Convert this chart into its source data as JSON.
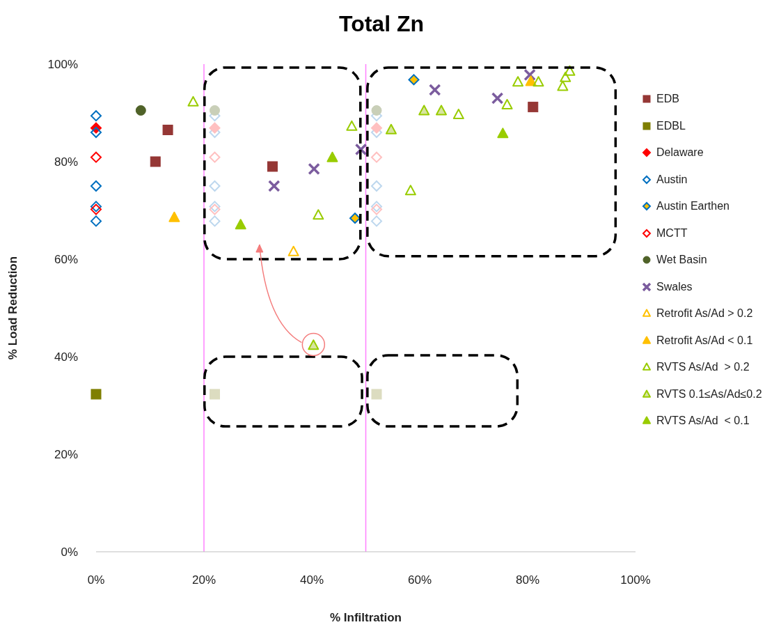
{
  "chart_data": {
    "type": "scatter",
    "title": "Total Zn",
    "xlabel": "% Infiltration",
    "ylabel": "% Load Reduction",
    "xlim": [
      0,
      100
    ],
    "ylim": [
      0,
      100
    ],
    "xticks": [
      {
        "value": 0,
        "label": "0%"
      },
      {
        "value": 20,
        "label": "20%"
      },
      {
        "value": 40,
        "label": "40%"
      },
      {
        "value": 60,
        "label": "60%"
      },
      {
        "value": 80,
        "label": "80%"
      },
      {
        "value": 100,
        "label": "100%"
      }
    ],
    "yticks": [
      {
        "value": 0,
        "label": "0%"
      },
      {
        "value": 20,
        "label": "20%"
      },
      {
        "value": 40,
        "label": "40%"
      },
      {
        "value": 60,
        "label": "60%"
      },
      {
        "value": 80,
        "label": "80%"
      },
      {
        "value": 100,
        "label": "100%"
      }
    ],
    "grid": false,
    "legend": "right",
    "ref_lines": [
      {
        "axis": "x",
        "value": 20,
        "color": "#ff80ff"
      },
      {
        "axis": "x",
        "value": 50,
        "color": "#ff80ff"
      }
    ],
    "series": [
      {
        "name": "EDB",
        "marker": "square",
        "color": "#953735",
        "x": [
          13.3,
          11.0,
          32.7,
          81.0
        ],
        "values": [
          86.5,
          80.0,
          79.0,
          91.2
        ]
      },
      {
        "name": "EDBL",
        "marker": "square",
        "color": "#7f7f00",
        "x": [
          0
        ],
        "values": [
          32.3
        ]
      },
      {
        "name": "Delaware",
        "marker": "diamond",
        "color": "#ff0000",
        "x": [
          0
        ],
        "values": [
          86.9
        ]
      },
      {
        "name": "Austin",
        "marker": "diamond",
        "color": "#0070c0",
        "x": [
          0,
          0,
          0,
          0,
          0
        ],
        "values": [
          89.4,
          86.0,
          75.0,
          70.8,
          67.8
        ]
      },
      {
        "name": "Austin Earthen",
        "marker": "diamond",
        "color": "#ffc000",
        "x": [
          58.9,
          48.0
        ],
        "values": [
          96.8,
          68.4
        ]
      },
      {
        "name": "MCTT",
        "marker": "diamond",
        "color": "#ff0000",
        "x": [
          0,
          0
        ],
        "values": [
          80.9,
          70.2
        ]
      },
      {
        "name": "Wet Basin",
        "marker": "circle",
        "color": "#4f6228",
        "x": [
          8.3
        ],
        "values": [
          90.5
        ]
      },
      {
        "name": "Swales",
        "marker": "cross",
        "color": "#7b5c9e",
        "x": [
          33.0,
          40.4,
          49.1,
          62.8,
          74.4,
          80.4
        ],
        "values": [
          75.0,
          78.5,
          82.5,
          94.7,
          93.0,
          97.8
        ]
      },
      {
        "name": "Retrofit As/Ad > 0.2",
        "marker": "triangle",
        "color": "#ffc000",
        "x": [
          36.6
        ],
        "values": [
          61.5
        ]
      },
      {
        "name": "Retrofit As/Ad < 0.1",
        "marker": "triangle",
        "color": "#ffc000",
        "x": [
          14.5,
          80.6
        ],
        "values": [
          68.5,
          96.4
        ]
      },
      {
        "name": "RVTS As/Ad  > 0.2",
        "marker": "triangle",
        "color": "#99cc00",
        "x": [
          18.0,
          47.4,
          41.2,
          58.3,
          67.2,
          76.2,
          78.2,
          82.0,
          86.5,
          87.0,
          87.8
        ],
        "values": [
          92.2,
          87.2,
          69.0,
          74.0,
          89.6,
          91.6,
          96.3,
          96.3,
          95.4,
          97.2,
          98.5
        ]
      },
      {
        "name": "RVTS 0.1≤As/Ad≤0.2",
        "marker": "triangle",
        "color": "#d7e4a0",
        "x": [
          54.7,
          60.8,
          64.0,
          40.3
        ],
        "values": [
          86.5,
          90.4,
          90.4,
          42.3
        ]
      },
      {
        "name": "RVTS As/Ad  < 0.1",
        "marker": "triangle",
        "color": "#99cc00",
        "x": [
          26.8,
          43.8,
          75.4
        ],
        "values": [
          67.0,
          80.8,
          85.7
        ]
      },
      {
        "marker": "diamond",
        "color": "#bdd7ee",
        "x": [
          22,
          22,
          22,
          22,
          22,
          52,
          52,
          52,
          52,
          52
        ],
        "values": [
          89.4,
          86.0,
          75.0,
          70.8,
          67.8,
          89.4,
          86.0,
          75.0,
          70.8,
          67.8
        ]
      },
      {
        "marker": "diamond",
        "color": "#ffc0c0",
        "x": [
          22,
          22,
          52,
          52
        ],
        "values": [
          80.9,
          70.2,
          80.9,
          70.2
        ]
      },
      {
        "marker": "diamond",
        "color": "#ffc0c0",
        "x": [
          22,
          52
        ],
        "values": [
          86.9,
          86.9
        ]
      },
      {
        "marker": "circle",
        "color": "#c9cfb8",
        "x": [
          22,
          52
        ],
        "values": [
          90.5,
          90.5
        ]
      },
      {
        "marker": "square",
        "color": "#dcdcc0",
        "x": [
          22,
          52
        ],
        "values": [
          32.3,
          32.3
        ]
      }
    ]
  }
}
